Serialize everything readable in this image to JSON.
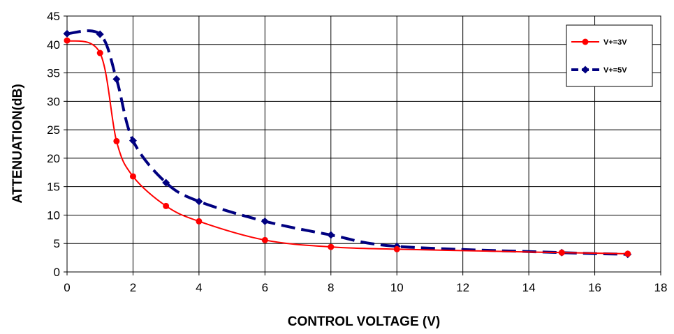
{
  "chart_data": {
    "type": "line",
    "xlabel": "CONTROL VOLTAGE (V)",
    "ylabel": "ATTENUATION(dB)",
    "xlim": [
      0,
      18
    ],
    "ylim": [
      0,
      45
    ],
    "x_ticks": [
      0,
      2,
      4,
      6,
      8,
      10,
      12,
      14,
      16,
      18
    ],
    "y_ticks": [
      0,
      5,
      10,
      15,
      20,
      25,
      30,
      35,
      40,
      45
    ],
    "grid": true,
    "legend_position": "top-right",
    "series": [
      {
        "name": "V+=3V",
        "color": "#ff0000",
        "line_style": "solid",
        "marker": "circle",
        "x": [
          0,
          1,
          1.5,
          2,
          3,
          4,
          6,
          8,
          10,
          15,
          17
        ],
        "y": [
          40.7,
          38.5,
          23,
          16.8,
          11.6,
          8.9,
          5.6,
          4.4,
          4.0,
          3.4,
          3.2
        ]
      },
      {
        "name": "V+=5V",
        "color": "#000080",
        "line_style": "dashed",
        "marker": "diamond",
        "x": [
          0,
          1,
          1.5,
          2,
          3,
          4,
          6,
          8,
          10,
          15,
          17
        ],
        "y": [
          41.9,
          41.8,
          33.9,
          23.1,
          15.7,
          12.4,
          8.9,
          6.5,
          4.5,
          3.4,
          3.1
        ]
      }
    ]
  }
}
